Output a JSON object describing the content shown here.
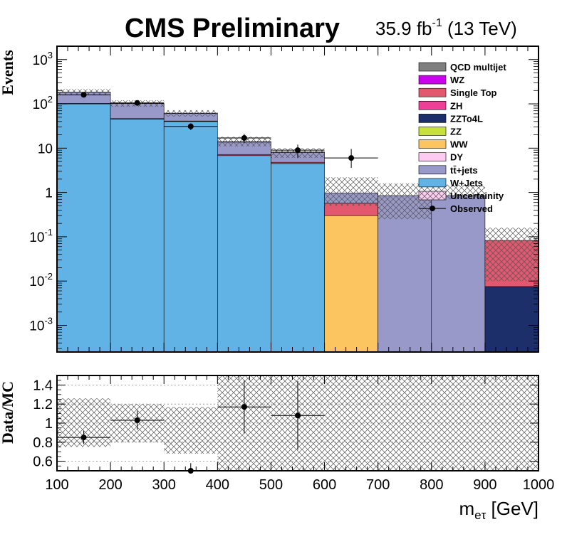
{
  "chart_data": [
    {
      "type": "bar",
      "title": "CMS Preliminary",
      "subtitle": "35.9 fb-1 (13 TeV)",
      "subtitle_parts": {
        "main": "35.9 fb",
        "sup": "-1",
        "rest": " (13 TeV)"
      },
      "ylabel": "Events",
      "yscale": "log",
      "ylim": [
        0.00025,
        2000
      ],
      "xlim": [
        100,
        1000
      ],
      "bin_edges": [
        100,
        200,
        300,
        400,
        500,
        600,
        700,
        800,
        900,
        1000
      ],
      "y_ticks": [
        {
          "value": 0.001,
          "base": "10",
          "exp": "-3"
        },
        {
          "value": 0.01,
          "base": "10",
          "exp": "-2"
        },
        {
          "value": 0.1,
          "base": "10",
          "exp": "-1"
        },
        {
          "value": 1,
          "base": "1",
          "exp": ""
        },
        {
          "value": 10,
          "base": "10",
          "exp": ""
        },
        {
          "value": 100,
          "base": "10",
          "exp": "2"
        },
        {
          "value": 1000,
          "base": "10",
          "exp": "3"
        }
      ],
      "legend_position": "top-right",
      "stack_order": [
        "ZZTo4L",
        "W+Jets",
        "WW",
        "Single Top",
        "tt+jets",
        "ZH"
      ],
      "series": [
        {
          "name": "QCD multijet",
          "color": "#7f7f7f",
          "values": [
            0,
            0,
            0,
            0,
            0,
            0,
            0,
            0,
            0
          ]
        },
        {
          "name": "WZ",
          "color": "#cc00ee",
          "values": [
            0,
            0,
            0,
            0,
            0,
            0,
            0,
            0,
            0
          ]
        },
        {
          "name": "Single Top",
          "color": "#e2586f",
          "values": [
            2,
            1.5,
            1,
            0.4,
            0.3,
            0.27,
            0,
            0,
            0.075
          ]
        },
        {
          "name": "ZH",
          "color": "#ee3e96",
          "values": [
            1.5,
            1,
            0.8,
            0.3,
            0.2,
            0,
            0,
            0,
            0
          ]
        },
        {
          "name": "ZZTo4L",
          "color": "#1d2f6b",
          "values": [
            0,
            0,
            0,
            0,
            0,
            0,
            0,
            0,
            0.0075
          ]
        },
        {
          "name": "ZZ",
          "color": "#c8e03c",
          "values": [
            0,
            0,
            0,
            0,
            0,
            0,
            0,
            0,
            0
          ]
        },
        {
          "name": "WW",
          "color": "#fdc560",
          "values": [
            0,
            0,
            0,
            0,
            0,
            0.3,
            0,
            0,
            0
          ]
        },
        {
          "name": "DY",
          "color": "#fdcbf1",
          "values": [
            0,
            0,
            0,
            0,
            0,
            0,
            0,
            0,
            0
          ]
        },
        {
          "name": "tt̄+jets",
          "color": "#9999c9",
          "values": [
            80,
            55,
            20,
            6.5,
            3.2,
            0.4,
            0.85,
            0.85,
            0
          ]
        },
        {
          "name": "W+Jets",
          "color": "#62b3e5",
          "values": [
            100,
            45,
            40,
            6.8,
            4.5,
            0,
            0,
            0,
            0
          ]
        }
      ],
      "mc_total": [
        185,
        102,
        62,
        14,
        8,
        0.97,
        0.85,
        0.85,
        0.083
      ],
      "uncertainty": {
        "name": "Uncertainity",
        "up": [
          215,
          120,
          72,
          18,
          10,
          2.2,
          1.6,
          1.5,
          0.16
        ],
        "down": [
          158,
          86,
          52,
          11,
          6,
          0.5,
          0.25,
          0.7,
          0.01
        ]
      },
      "observed": {
        "name": "Observed",
        "x": [
          150,
          250,
          350,
          450,
          550,
          650
        ],
        "y": [
          160,
          105,
          31,
          17,
          9,
          6
        ],
        "yerr_low": [
          13,
          10,
          5.5,
          4,
          3,
          2.4
        ],
        "yerr_high": [
          13,
          10,
          5.5,
          4,
          3,
          3.6
        ]
      }
    },
    {
      "type": "scatter",
      "ylabel": "Data/MC",
      "xlabel": "m_eτ [GeV]",
      "xlabel_parts": {
        "main": "m",
        "sub": "eτ",
        "rest": " [GeV]"
      },
      "xlim": [
        100,
        1000
      ],
      "ylim": [
        0.5,
        1.5
      ],
      "y_ticks": [
        "0.6",
        "0.8",
        "1",
        "1.2",
        "1.4"
      ],
      "x_ticks": [
        "100",
        "200",
        "300",
        "400",
        "500",
        "600",
        "700",
        "800",
        "900",
        "1000"
      ],
      "grid": true,
      "points": {
        "x": [
          150,
          250,
          350,
          450,
          550
        ],
        "y": [
          0.85,
          1.03,
          0.5,
          1.17,
          1.08
        ],
        "yerr": [
          0.07,
          0.1,
          0.08,
          0.28,
          0.36
        ]
      },
      "band": {
        "low": [
          0.75,
          0.8,
          0.68,
          0.5,
          0.5,
          0.5,
          0.5,
          0.5,
          0.5
        ],
        "high": [
          1.26,
          1.2,
          1.17,
          1.5,
          1.5,
          1.5,
          1.5,
          1.5,
          1.5
        ]
      }
    }
  ]
}
